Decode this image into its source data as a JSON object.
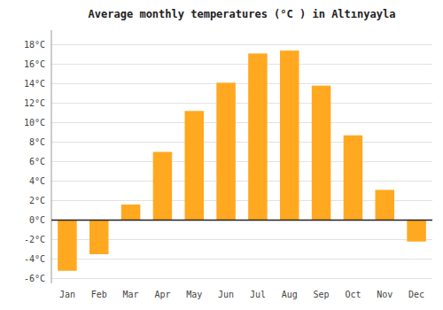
{
  "chart_data": {
    "type": "bar",
    "title": "Average monthly temperatures (°C ) in Altınyayla",
    "categories": [
      "Jan",
      "Feb",
      "Mar",
      "Apr",
      "May",
      "Jun",
      "Jul",
      "Aug",
      "Sep",
      "Oct",
      "Nov",
      "Dec"
    ],
    "values": [
      -5.2,
      -3.5,
      1.6,
      7.0,
      11.2,
      14.1,
      17.1,
      17.4,
      13.8,
      8.7,
      3.1,
      -2.2
    ],
    "color": "#FFA820",
    "ylim": [
      -6.5,
      19.5
    ],
    "yticks": [
      {
        "value": -6,
        "label": "-6°C"
      },
      {
        "value": -4,
        "label": "-4°C"
      },
      {
        "value": -2,
        "label": "-2°C"
      },
      {
        "value": 0,
        "label": "0°C"
      },
      {
        "value": 2,
        "label": "2°C"
      },
      {
        "value": 4,
        "label": "4°C"
      },
      {
        "value": 6,
        "label": "6°C"
      },
      {
        "value": 8,
        "label": "8°C"
      },
      {
        "value": 10,
        "label": "10°C"
      },
      {
        "value": 12,
        "label": "12°C"
      },
      {
        "value": 14,
        "label": "14°C"
      },
      {
        "value": 16,
        "label": "16°C"
      },
      {
        "value": 18,
        "label": "18°C"
      }
    ],
    "grid": true
  }
}
